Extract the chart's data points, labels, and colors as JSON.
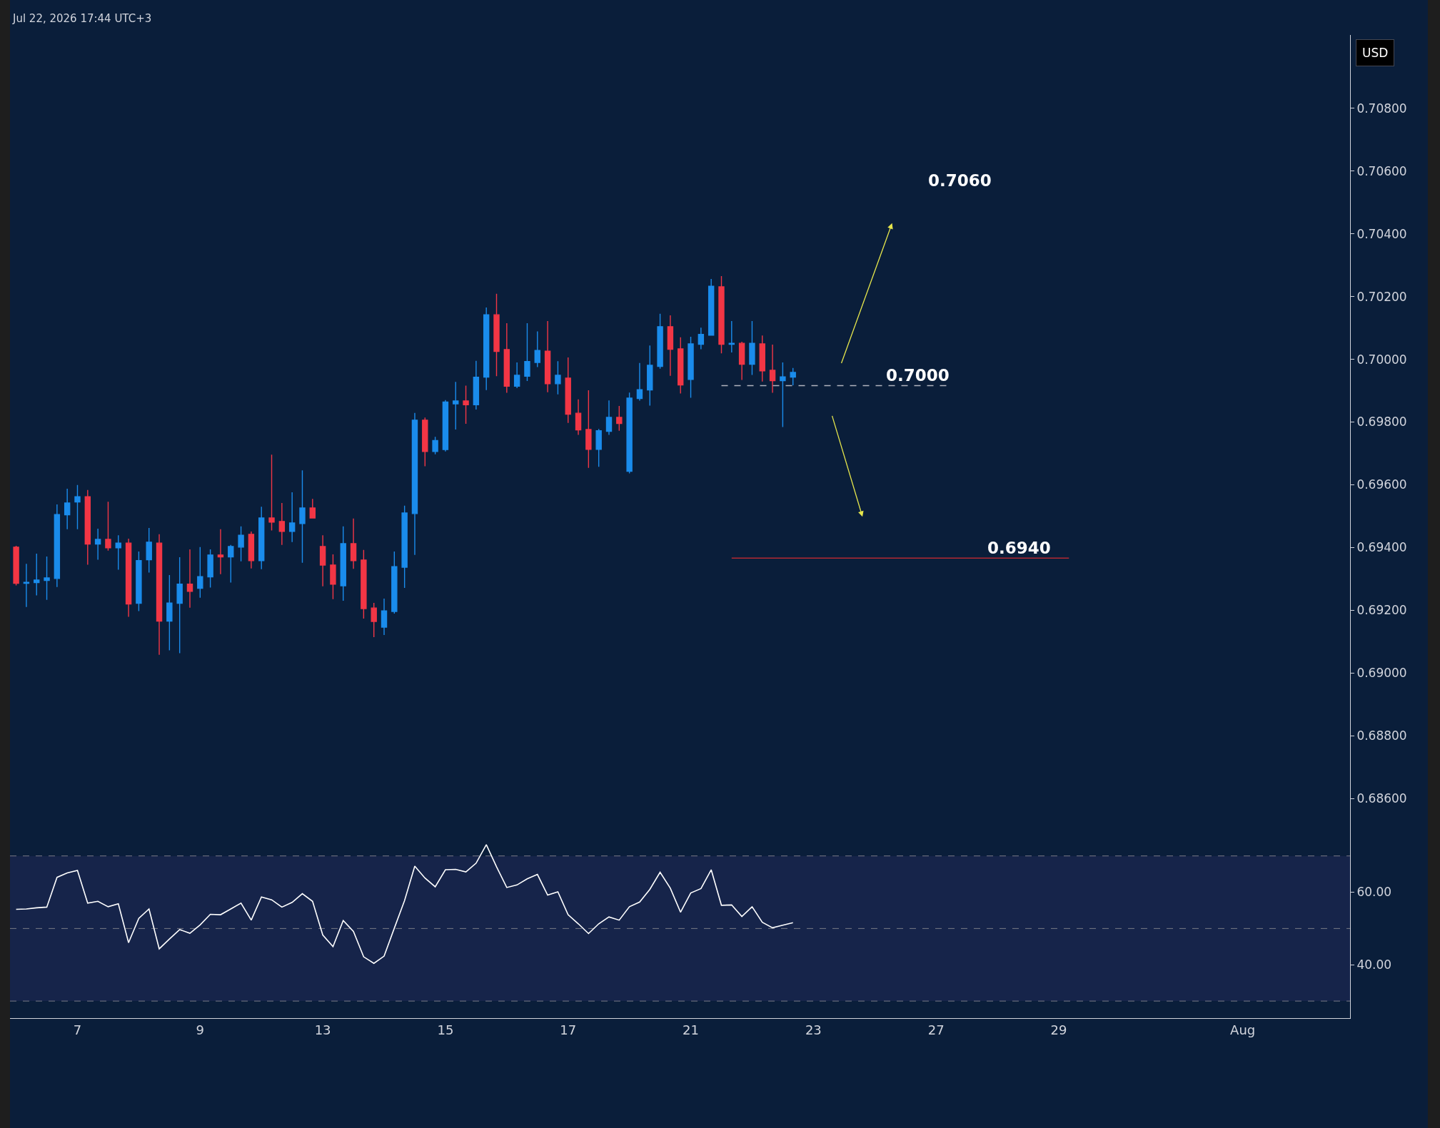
{
  "chart_data": [
    {
      "type": "candlestick",
      "title": "Jul 22, 2026 17:44 UTC+3",
      "ylabel": "USD",
      "categories": [
        null,
        null,
        null,
        null,
        null,
        null,
        null,
        null,
        null,
        null,
        null,
        null,
        null,
        null,
        null,
        null,
        null,
        null,
        null,
        null,
        null,
        null,
        null,
        null,
        null,
        null,
        null,
        null,
        null,
        null,
        null,
        null,
        null,
        null,
        null,
        null,
        null,
        null,
        null,
        null,
        null,
        null,
        null,
        null,
        null,
        null,
        null,
        null,
        null,
        null,
        null,
        null,
        null,
        null,
        null,
        null,
        null,
        null,
        null,
        null,
        null,
        null,
        null,
        null,
        null,
        null,
        null,
        null,
        null,
        null,
        null,
        null,
        null,
        null,
        null,
        null,
        null,
        null,
        null,
        null,
        null,
        null,
        null,
        null,
        null,
        null,
        null,
        null,
        null,
        null,
        null,
        null,
        null,
        null,
        null,
        null,
        null,
        null,
        null,
        null,
        null,
        null,
        null,
        null,
        null,
        null,
        null,
        null,
        null,
        null,
        null,
        null,
        null,
        null,
        null,
        null,
        null,
        null,
        null,
        null,
        null,
        null,
        null,
        null,
        null,
        null,
        null,
        null,
        null,
        null,
        null
      ],
      "ohlc": [
        [
          0.69401,
          0.69405,
          0.69279,
          0.69286
        ],
        [
          0.69286,
          0.69348,
          0.6921,
          0.69289
        ],
        [
          0.69288,
          0.6938,
          0.69247,
          0.69296
        ],
        [
          0.69295,
          0.69371,
          0.69233,
          0.69303
        ],
        [
          0.69301,
          0.69537,
          0.69274,
          0.69505
        ],
        [
          0.69504,
          0.69587,
          0.69458,
          0.69542
        ],
        [
          0.69545,
          0.69599,
          0.69458,
          0.69562
        ],
        [
          0.69562,
          0.69583,
          0.69345,
          0.69411
        ],
        [
          0.69411,
          0.6946,
          0.69361,
          0.69426
        ],
        [
          0.69426,
          0.69546,
          0.6939,
          0.69399
        ],
        [
          0.69399,
          0.69439,
          0.69329,
          0.69414
        ],
        [
          0.69414,
          0.69428,
          0.69179,
          0.6922
        ],
        [
          0.69222,
          0.69387,
          0.69197,
          0.69358
        ],
        [
          0.69361,
          0.69462,
          0.6932,
          0.69417
        ],
        [
          0.69414,
          0.69442,
          0.69058,
          0.69165
        ],
        [
          0.69165,
          0.69312,
          0.69072,
          0.69223
        ],
        [
          0.69222,
          0.69369,
          0.69063,
          0.69283
        ],
        [
          0.69283,
          0.69394,
          0.69208,
          0.6926
        ],
        [
          0.6927,
          0.69401,
          0.6924,
          0.69307
        ],
        [
          0.69306,
          0.69394,
          0.69272,
          0.69376
        ],
        [
          0.69376,
          0.69458,
          0.69315,
          0.6937
        ],
        [
          0.6937,
          0.69408,
          0.69288,
          0.69403
        ],
        [
          0.69401,
          0.69467,
          0.69356,
          0.69439
        ],
        [
          0.69442,
          0.69451,
          0.69333,
          0.69358
        ],
        [
          0.69358,
          0.6953,
          0.69331,
          0.69494
        ],
        [
          0.69494,
          0.69696,
          0.69454,
          0.69481
        ],
        [
          0.69483,
          0.69542,
          0.69408,
          0.69451
        ],
        [
          0.69451,
          0.69576,
          0.69417,
          0.69478
        ],
        [
          0.69476,
          0.69646,
          0.69351,
          0.69526
        ],
        [
          0.69526,
          0.69555,
          0.69492,
          0.69494
        ],
        [
          0.69403,
          0.69439,
          0.69276,
          0.69344
        ],
        [
          0.69344,
          0.69378,
          0.69235,
          0.69283
        ],
        [
          0.69278,
          0.69467,
          0.6923,
          0.69412
        ],
        [
          0.69412,
          0.69492,
          0.69332,
          0.69358
        ],
        [
          0.6936,
          0.69392,
          0.69173,
          0.69205
        ],
        [
          0.69207,
          0.69223,
          0.69114,
          0.69164
        ],
        [
          0.69146,
          0.69237,
          0.69121,
          0.69198
        ],
        [
          0.69196,
          0.69387,
          0.69189,
          0.69339
        ],
        [
          0.69337,
          0.69533,
          0.69271,
          0.6951
        ],
        [
          0.69508,
          0.69829,
          0.69376,
          0.69806
        ],
        [
          0.69806,
          0.69814,
          0.69659,
          0.69706
        ],
        [
          0.69706,
          0.69753,
          0.69697,
          0.69741
        ],
        [
          0.69712,
          0.6987,
          0.69706,
          0.69864
        ],
        [
          0.69858,
          0.69928,
          0.69776,
          0.69867
        ],
        [
          0.69867,
          0.69916,
          0.69794,
          0.69855
        ],
        [
          0.69855,
          0.69995,
          0.6984,
          0.69943
        ],
        [
          0.69943,
          0.70165,
          0.69902,
          0.70142
        ],
        [
          0.70142,
          0.70209,
          0.69946,
          0.70025
        ],
        [
          0.70031,
          0.70115,
          0.69893,
          0.69914
        ],
        [
          0.69914,
          0.6999,
          0.69908,
          0.69949
        ],
        [
          0.69946,
          0.70115,
          0.69931,
          0.69993
        ],
        [
          0.6999,
          0.70089,
          0.69975,
          0.70028
        ],
        [
          0.70026,
          0.70122,
          0.69895,
          0.69922
        ],
        [
          0.69922,
          0.69994,
          0.69888,
          0.69949
        ],
        [
          0.6994,
          0.70006,
          0.69797,
          0.69825
        ],
        [
          0.69828,
          0.69872,
          0.69759,
          0.69775
        ],
        [
          0.69776,
          0.69901,
          0.69654,
          0.69713
        ],
        [
          0.69713,
          0.69778,
          0.69657,
          0.69772
        ],
        [
          0.6977,
          0.69869,
          0.69759,
          0.69815
        ],
        [
          0.69815,
          0.69851,
          0.69772,
          0.69795
        ],
        [
          0.69643,
          0.69894,
          0.69636,
          0.69876
        ],
        [
          0.69875,
          0.69988,
          0.69868,
          0.69903
        ],
        [
          0.69902,
          0.70044,
          0.69852,
          0.69981
        ],
        [
          0.69977,
          0.70145,
          0.6997,
          0.70104
        ],
        [
          0.70104,
          0.7014,
          0.69947,
          0.70032
        ],
        [
          0.70033,
          0.7007,
          0.69891,
          0.69918
        ],
        [
          0.69936,
          0.70072,
          0.69877,
          0.70049
        ],
        [
          0.70048,
          0.70101,
          0.70032,
          0.70079
        ],
        [
          0.70077,
          0.70256,
          0.70077,
          0.70233
        ],
        [
          0.70231,
          0.70265,
          0.70019,
          0.70048
        ],
        [
          0.70048,
          0.70122,
          0.70022,
          0.70051
        ],
        [
          0.70051,
          0.70056,
          0.69934,
          0.69984
        ],
        [
          0.69984,
          0.70122,
          0.6995,
          0.70051
        ],
        [
          0.70049,
          0.70076,
          0.69929,
          0.69963
        ],
        [
          0.69965,
          0.70047,
          0.69893,
          0.69932
        ],
        [
          0.69932,
          0.6999,
          0.69784,
          0.69944
        ],
        [
          0.69943,
          0.69972,
          0.69917,
          0.69958
        ],
        null,
        null,
        null,
        null,
        null,
        null,
        null,
        null,
        null,
        null,
        null,
        null,
        null,
        null,
        null,
        null,
        null,
        null,
        null,
        null,
        null,
        null,
        null,
        null,
        null,
        null,
        null,
        null,
        null,
        null,
        null,
        null,
        null,
        null,
        null,
        null,
        null,
        null,
        null,
        null,
        null,
        null,
        null,
        null,
        null,
        null,
        null,
        null,
        null,
        null,
        null,
        null,
        null,
        null
      ],
      "colors": [
        "#f23645",
        "#1a8cec",
        "#1a8cec",
        "#1a8cec",
        "#1a8cec",
        "#1a8cec",
        "#1a8cec",
        "#f23645",
        "#1a8cec",
        "#f23645",
        "#1a8cec",
        "#f23645",
        "#1a8cec",
        "#1a8cec",
        "#f23645",
        "#1a8cec",
        "#1a8cec",
        "#f23645",
        "#1a8cec",
        "#1a8cec",
        "#f23645",
        "#1a8cec",
        "#1a8cec",
        "#f23645",
        "#1a8cec",
        "#f23645",
        "#f23645",
        "#1a8cec",
        "#1a8cec",
        "#f23645",
        "#f23645",
        "#f23645",
        "#1a8cec",
        "#f23645",
        "#f23645",
        "#f23645",
        "#1a8cec",
        "#1a8cec",
        "#1a8cec",
        "#1a8cec",
        "#f23645",
        "#1a8cec",
        "#1a8cec",
        "#1a8cec",
        "#f23645",
        "#1a8cec",
        "#1a8cec",
        "#f23645",
        "#f23645",
        "#1a8cec",
        "#1a8cec",
        "#1a8cec",
        "#f23645",
        "#1a8cec",
        "#f23645",
        "#f23645",
        "#f23645",
        "#1a8cec",
        "#1a8cec",
        "#f23645",
        "#1a8cec",
        "#1a8cec",
        "#1a8cec",
        "#1a8cec",
        "#f23645",
        "#f23645",
        "#1a8cec",
        "#1a8cec",
        "#1a8cec",
        "#f23645",
        "#1a8cec",
        "#f23645",
        "#1a8cec",
        "#f23645",
        "#f23645",
        "#1a8cec",
        "#1a8cec",
        null,
        null,
        null,
        null,
        null,
        null,
        null,
        null,
        null,
        null,
        null,
        null,
        null,
        null,
        null,
        null,
        null,
        null,
        null,
        null,
        null,
        null,
        null,
        null,
        null,
        null,
        null,
        null,
        null,
        null,
        null,
        null,
        null,
        null,
        null,
        null,
        null,
        null,
        null,
        null,
        null,
        null,
        null,
        null,
        null,
        null,
        null,
        null,
        null,
        null,
        null,
        null,
        null,
        null
      ],
      "series": [
        {
          "type": "line",
          "color": "#b2b5be",
          "line_style": "dashed",
          "values": [
            null,
            null,
            null,
            null,
            null,
            null,
            null,
            null,
            null,
            null,
            null,
            null,
            null,
            null,
            null,
            null,
            null,
            null,
            null,
            null,
            null,
            null,
            null,
            null,
            null,
            null,
            null,
            null,
            null,
            null,
            null,
            null,
            null,
            null,
            null,
            null,
            null,
            null,
            null,
            null,
            null,
            null,
            null,
            null,
            null,
            null,
            null,
            null,
            null,
            null,
            null,
            null,
            null,
            null,
            null,
            null,
            null,
            null,
            null,
            null,
            null,
            null,
            null,
            null,
            null,
            null,
            null,
            null,
            null,
            0.69916,
            0.69916,
            0.69916,
            0.69916,
            0.69916,
            0.69916,
            0.69916,
            0.69916,
            0.69916,
            0.69916,
            0.69916,
            0.69916,
            0.69916,
            0.69916,
            0.69916,
            0.69916,
            0.69916,
            0.69916,
            0.69916,
            0.69916,
            0.69916,
            0.69916,
            0.69916,
            null,
            null,
            null,
            null,
            null,
            null,
            null,
            null,
            null,
            null,
            null,
            null,
            null,
            null,
            null,
            null,
            null,
            null,
            null,
            null,
            null,
            null,
            null,
            null,
            null,
            null,
            null,
            null,
            null,
            null,
            null,
            null,
            null,
            null,
            null,
            null,
            null,
            null,
            null
          ]
        },
        {
          "type": "line",
          "color": "#b22833",
          "line_style": "solid",
          "values": [
            null,
            null,
            null,
            null,
            null,
            null,
            null,
            null,
            null,
            null,
            null,
            null,
            null,
            null,
            null,
            null,
            null,
            null,
            null,
            null,
            null,
            null,
            null,
            null,
            null,
            null,
            null,
            null,
            null,
            null,
            null,
            null,
            null,
            null,
            null,
            null,
            null,
            null,
            null,
            null,
            null,
            null,
            null,
            null,
            null,
            null,
            null,
            null,
            null,
            null,
            null,
            null,
            null,
            null,
            null,
            null,
            null,
            null,
            null,
            null,
            null,
            null,
            null,
            null,
            null,
            null,
            null,
            null,
            null,
            null,
            0.69366,
            0.69366,
            0.69366,
            0.69366,
            0.69366,
            0.69366,
            0.69366,
            0.69366,
            0.69366,
            0.69366,
            0.69366,
            0.69366,
            0.69366,
            0.69366,
            0.69366,
            0.69366,
            0.69366,
            0.69366,
            0.69366,
            0.69366,
            0.69366,
            0.69366,
            0.69366,
            0.69366,
            0.69366,
            0.69366,
            0.69366,
            0.69366,
            0.69366,
            0.69366,
            0.69366,
            0.69366,
            0.69366,
            0.69366,
            null,
            null,
            null,
            null,
            null,
            null,
            null,
            null,
            null,
            null,
            null,
            null,
            null,
            null,
            null,
            null,
            null,
            null,
            null,
            null,
            null,
            null,
            null,
            null,
            null,
            null,
            null
          ]
        }
      ],
      "annotations": [
        "0.7060",
        "0.7000",
        "0.6940"
      ],
      "ylim": [
        0.68509,
        0.71034
      ],
      "yticks": [
        {
          "value": 0.686,
          "label": "0.68600"
        },
        {
          "value": 0.688,
          "label": "0.68800"
        },
        {
          "value": 0.69,
          "label": "0.69000"
        },
        {
          "value": 0.692,
          "label": "0.69200"
        },
        {
          "value": 0.694,
          "label": "0.69400"
        },
        {
          "value": 0.696,
          "label": "0.69600"
        },
        {
          "value": 0.698,
          "label": "0.69800"
        },
        {
          "value": 0.7,
          "label": "0.70000"
        },
        {
          "value": 0.702,
          "label": "0.70200"
        },
        {
          "value": 0.704,
          "label": "0.70400"
        },
        {
          "value": 0.706,
          "label": "0.70600"
        },
        {
          "value": 0.708,
          "label": "0.70800"
        }
      ],
      "tick_labels": "y"
    },
    {
      "type": "line",
      "color": "#ffffff",
      "categories": [
        null,
        null,
        null,
        null,
        null,
        null,
        "7",
        null,
        null,
        null,
        null,
        null,
        null,
        null,
        null,
        null,
        null,
        null,
        "9",
        null,
        null,
        null,
        null,
        null,
        null,
        null,
        null,
        null,
        null,
        null,
        "13",
        null,
        null,
        null,
        null,
        null,
        null,
        null,
        null,
        null,
        null,
        null,
        "15",
        null,
        null,
        null,
        null,
        null,
        null,
        null,
        null,
        null,
        null,
        null,
        "17",
        null,
        null,
        null,
        null,
        null,
        null,
        null,
        null,
        null,
        null,
        null,
        "21",
        null,
        null,
        null,
        null,
        null,
        null,
        null,
        null,
        null,
        null,
        null,
        "23",
        null,
        null,
        null,
        null,
        null,
        null,
        null,
        null,
        null,
        null,
        null,
        "27",
        null,
        null,
        null,
        null,
        null,
        null,
        null,
        null,
        null,
        null,
        null,
        "29",
        null,
        null,
        null,
        null,
        null,
        null,
        null,
        null,
        null,
        null,
        null,
        null,
        null,
        null,
        null,
        null,
        null,
        "Aug",
        null,
        null,
        null,
        null,
        null,
        null,
        null,
        null,
        null,
        null
      ],
      "values": [
        55.3,
        55.4,
        55.7,
        55.9,
        64.1,
        65.3,
        66.0,
        57.0,
        57.5,
        56.0,
        56.8,
        46.1,
        52.8,
        55.4,
        44.4,
        47.1,
        49.7,
        48.7,
        51.0,
        53.9,
        53.8,
        55.4,
        57.0,
        52.3,
        58.7,
        57.9,
        55.9,
        57.2,
        59.6,
        57.5,
        48.2,
        45.0,
        52.2,
        49.2,
        42.2,
        40.4,
        42.4,
        50.1,
        57.7,
        67.2,
        63.9,
        61.5,
        66.2,
        66.3,
        65.6,
        68.0,
        73.1,
        67.0,
        61.3,
        62.0,
        63.7,
        64.9,
        59.2,
        60.1,
        53.8,
        51.3,
        48.6,
        51.3,
        53.2,
        52.3,
        56.0,
        57.3,
        60.8,
        65.5,
        61.1,
        54.5,
        59.8,
        61.0,
        66.2,
        56.4,
        56.5,
        53.3,
        56.0,
        51.7,
        50.2,
        50.9,
        51.6,
        null,
        null,
        null,
        null,
        null,
        null,
        null,
        null,
        null,
        null,
        null,
        null,
        null,
        null,
        null,
        null,
        null,
        null,
        null,
        null,
        null,
        null,
        null,
        null,
        null,
        null,
        null,
        null,
        null,
        null,
        null,
        null,
        null,
        null,
        null,
        null,
        null,
        null,
        null,
        null,
        null,
        null,
        null,
        null,
        null,
        null,
        null,
        null,
        null,
        null,
        null,
        null,
        null,
        null
      ],
      "ylim": [
        25.3,
        78
      ],
      "yticks": [
        {
          "value": 40,
          "label": "40.00"
        },
        {
          "value": 60,
          "label": "60.00"
        }
      ],
      "ref_lines": [
        {
          "axis": "y",
          "value": 70,
          "color": "#787b86",
          "line_style": "dashed"
        },
        {
          "axis": "y",
          "value": 50,
          "color": "#787b86",
          "line_style": "dashed"
        },
        {
          "axis": "y",
          "value": 30,
          "color": "#787b86",
          "line_style": "dashed"
        }
      ],
      "bands": [
        {
          "axis": "y",
          "from": 30,
          "to": 70,
          "color": "#16244a"
        }
      ]
    }
  ]
}
